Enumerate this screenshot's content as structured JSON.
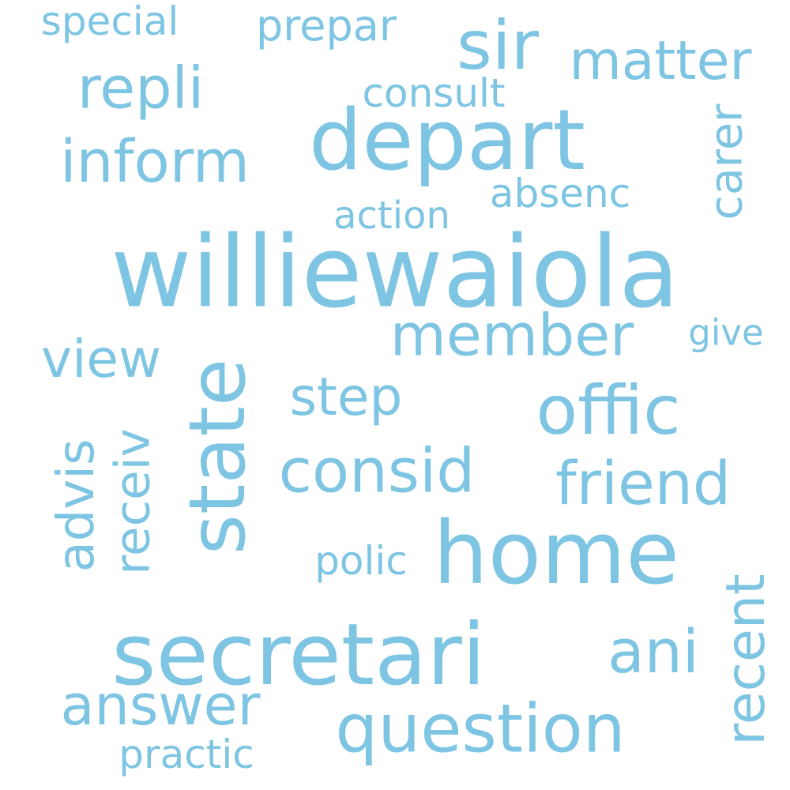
{
  "color": "#7ec5e3",
  "background": "#ffffff",
  "words": [
    {
      "text": "williewaiola"
    },
    {
      "text": "secretari"
    },
    {
      "text": "depart"
    },
    {
      "text": "state"
    },
    {
      "text": "home"
    },
    {
      "text": "question"
    },
    {
      "text": "offic"
    },
    {
      "text": "consid"
    },
    {
      "text": "sir"
    },
    {
      "text": "friend"
    },
    {
      "text": "member"
    },
    {
      "text": "inform"
    },
    {
      "text": "repli"
    },
    {
      "text": "answer"
    },
    {
      "text": "ani"
    },
    {
      "text": "recent"
    },
    {
      "text": "matter"
    },
    {
      "text": "step"
    },
    {
      "text": "view"
    },
    {
      "text": "advis"
    },
    {
      "text": "receiv"
    },
    {
      "text": "carer"
    },
    {
      "text": "consult"
    },
    {
      "text": "prepar"
    },
    {
      "text": "special"
    },
    {
      "text": "absenc"
    },
    {
      "text": "action"
    },
    {
      "text": "polic"
    },
    {
      "text": "practic"
    },
    {
      "text": "give"
    }
  ]
}
